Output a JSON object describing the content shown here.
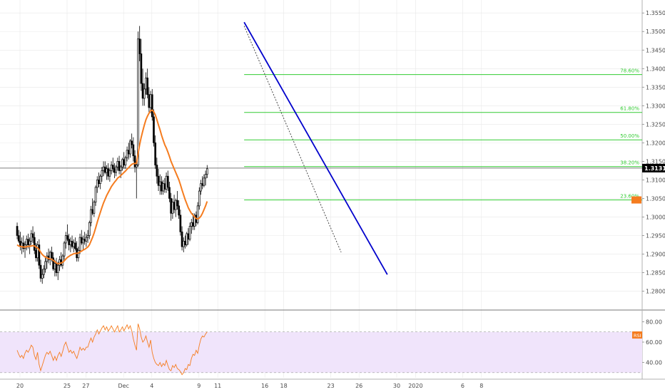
{
  "chart_data": {
    "type": "candlestick",
    "price_axis": {
      "ticks": [
        "1.35500",
        "1.35000",
        "1.34500",
        "1.34000",
        "1.33500",
        "1.33000",
        "1.32500",
        "1.32000",
        "1.31500",
        "1.31000",
        "1.30500",
        "1.30000",
        "1.29500",
        "1.29000",
        "1.28500",
        "1.28000"
      ],
      "ylim": [
        1.2755,
        1.3585
      ],
      "last_price": "1.31318",
      "last_price_color": "#000000"
    },
    "x_axis": {
      "labels": [
        {
          "label": "20",
          "day": 0
        },
        {
          "label": "25",
          "day": 5
        },
        {
          "label": "27",
          "day": 7
        },
        {
          "label": "Dec",
          "day": 11
        },
        {
          "label": "4",
          "day": 14
        },
        {
          "label": "9",
          "day": 19
        },
        {
          "label": "11",
          "day": 21
        },
        {
          "label": "16",
          "day": 26
        },
        {
          "label": "18",
          "day": 28
        },
        {
          "label": "23",
          "day": 33
        },
        {
          "label": "26",
          "day": 36
        },
        {
          "label": "30",
          "day": 40
        },
        {
          "label": "2020",
          "day": 42
        },
        {
          "label": "6",
          "day": 47
        },
        {
          "label": "8",
          "day": 49
        }
      ]
    },
    "colors": {
      "up": "#ffffff",
      "down": "#000000",
      "wick": "#000000",
      "ma": "#f57c1f",
      "trendline": "#0000cc",
      "fib": "#33cc33",
      "rsi_line": "#f57c1f",
      "rsi_band": "#f0e4fb",
      "grid": "#e8e8e8"
    },
    "candles_start_day": -0.3,
    "candle_step_days": 0.1667,
    "candles": [
      [
        1.2975,
        1.2985,
        1.294,
        1.295
      ],
      [
        1.295,
        1.2965,
        1.293,
        1.2935
      ],
      [
        1.2935,
        1.296,
        1.291,
        1.292
      ],
      [
        1.292,
        1.2945,
        1.29,
        1.293
      ],
      [
        1.293,
        1.295,
        1.2905,
        1.2915
      ],
      [
        1.2915,
        1.2935,
        1.289,
        1.2925
      ],
      [
        1.2925,
        1.295,
        1.291,
        1.294
      ],
      [
        1.294,
        1.2955,
        1.2915,
        1.2925
      ],
      [
        1.2925,
        1.2945,
        1.29,
        1.2935
      ],
      [
        1.2935,
        1.2965,
        1.2925,
        1.2955
      ],
      [
        1.2955,
        1.2975,
        1.293,
        1.2945
      ],
      [
        1.2945,
        1.296,
        1.29,
        1.291
      ],
      [
        1.291,
        1.293,
        1.288,
        1.289
      ],
      [
        1.289,
        1.2935,
        1.288,
        1.2925
      ],
      [
        1.2925,
        1.294,
        1.286,
        1.287
      ],
      [
        1.287,
        1.2885,
        1.2825,
        1.2835
      ],
      [
        1.2835,
        1.286,
        1.282,
        1.2845
      ],
      [
        1.2845,
        1.287,
        1.2835,
        1.286
      ],
      [
        1.286,
        1.289,
        1.285,
        1.288
      ],
      [
        1.288,
        1.2905,
        1.286,
        1.2895
      ],
      [
        1.2895,
        1.2915,
        1.2875,
        1.2885
      ],
      [
        1.2885,
        1.291,
        1.287,
        1.2905
      ],
      [
        1.2905,
        1.292,
        1.288,
        1.289
      ],
      [
        1.289,
        1.2905,
        1.2855,
        1.286
      ],
      [
        1.286,
        1.2885,
        1.284,
        1.2875
      ],
      [
        1.2875,
        1.289,
        1.284,
        1.285
      ],
      [
        1.285,
        1.288,
        1.283,
        1.287
      ],
      [
        1.287,
        1.2895,
        1.2855,
        1.2885
      ],
      [
        1.2885,
        1.2905,
        1.2865,
        1.287
      ],
      [
        1.287,
        1.29,
        1.286,
        1.2895
      ],
      [
        1.2895,
        1.2935,
        1.2885,
        1.293
      ],
      [
        1.293,
        1.296,
        1.2915,
        1.295
      ],
      [
        1.295,
        1.298,
        1.2935,
        1.294
      ],
      [
        1.294,
        1.2955,
        1.291,
        1.2925
      ],
      [
        1.2925,
        1.2945,
        1.2905,
        1.2935
      ],
      [
        1.2935,
        1.295,
        1.2915,
        1.292
      ],
      [
        1.292,
        1.294,
        1.2905,
        1.293
      ],
      [
        1.293,
        1.2945,
        1.291,
        1.2915
      ],
      [
        1.2915,
        1.2935,
        1.288,
        1.289
      ],
      [
        1.289,
        1.292,
        1.288,
        1.291
      ],
      [
        1.291,
        1.2955,
        1.29,
        1.2945
      ],
      [
        1.2945,
        1.2965,
        1.2925,
        1.293
      ],
      [
        1.293,
        1.295,
        1.291,
        1.294
      ],
      [
        1.294,
        1.296,
        1.2925,
        1.2935
      ],
      [
        1.2935,
        1.2955,
        1.292,
        1.2945
      ],
      [
        1.2945,
        1.2965,
        1.293,
        1.295
      ],
      [
        1.295,
        1.299,
        1.294,
        1.2985
      ],
      [
        1.2985,
        1.303,
        1.2975,
        1.302
      ],
      [
        1.302,
        1.305,
        1.3005,
        1.301
      ],
      [
        1.301,
        1.3045,
        1.3,
        1.304
      ],
      [
        1.304,
        1.3085,
        1.303,
        1.308
      ],
      [
        1.308,
        1.311,
        1.3065,
        1.31
      ],
      [
        1.31,
        1.312,
        1.308,
        1.309
      ],
      [
        1.309,
        1.3115,
        1.3075,
        1.311
      ],
      [
        1.311,
        1.3135,
        1.3095,
        1.3125
      ],
      [
        1.3125,
        1.315,
        1.311,
        1.3135
      ],
      [
        1.3135,
        1.315,
        1.3115,
        1.312
      ],
      [
        1.312,
        1.314,
        1.31,
        1.313
      ],
      [
        1.313,
        1.3145,
        1.31,
        1.311
      ],
      [
        1.311,
        1.313,
        1.3095,
        1.3125
      ],
      [
        1.3125,
        1.315,
        1.3115,
        1.314
      ],
      [
        1.314,
        1.316,
        1.312,
        1.313
      ],
      [
        1.313,
        1.3145,
        1.3105,
        1.312
      ],
      [
        1.312,
        1.314,
        1.311,
        1.3135
      ],
      [
        1.3135,
        1.316,
        1.3125,
        1.315
      ],
      [
        1.315,
        1.3165,
        1.3115,
        1.3125
      ],
      [
        1.3125,
        1.314,
        1.3105,
        1.3135
      ],
      [
        1.3135,
        1.316,
        1.3125,
        1.3155
      ],
      [
        1.3155,
        1.3175,
        1.313,
        1.314
      ],
      [
        1.314,
        1.3165,
        1.313,
        1.316
      ],
      [
        1.316,
        1.319,
        1.315,
        1.318
      ],
      [
        1.318,
        1.32,
        1.3155,
        1.317
      ],
      [
        1.317,
        1.321,
        1.316,
        1.3205
      ],
      [
        1.3205,
        1.3225,
        1.3185,
        1.3195
      ],
      [
        1.3195,
        1.3215,
        1.315,
        1.3165
      ],
      [
        1.3165,
        1.318,
        1.312,
        1.3135
      ],
      [
        1.3135,
        1.315,
        1.305,
        1.314
      ],
      [
        1.314,
        1.35,
        1.3135,
        1.348
      ],
      [
        1.348,
        1.3515,
        1.342,
        1.344
      ],
      [
        1.344,
        1.348,
        1.334,
        1.336
      ],
      [
        1.336,
        1.34,
        1.33,
        1.332
      ],
      [
        1.332,
        1.336,
        1.33,
        1.3345
      ],
      [
        1.3345,
        1.339,
        1.333,
        1.3375
      ],
      [
        1.3375,
        1.34,
        1.332,
        1.333
      ],
      [
        1.333,
        1.335,
        1.328,
        1.3295
      ],
      [
        1.3295,
        1.334,
        1.328,
        1.333
      ],
      [
        1.333,
        1.3345,
        1.326,
        1.327
      ],
      [
        1.327,
        1.329,
        1.319,
        1.32
      ],
      [
        1.32,
        1.322,
        1.313,
        1.314
      ],
      [
        1.314,
        1.316,
        1.309,
        1.311
      ],
      [
        1.311,
        1.313,
        1.307,
        1.3085
      ],
      [
        1.3085,
        1.3115,
        1.306,
        1.3095
      ],
      [
        1.3095,
        1.311,
        1.306,
        1.307
      ],
      [
        1.307,
        1.31,
        1.306,
        1.309
      ],
      [
        1.309,
        1.3105,
        1.3065,
        1.3075
      ],
      [
        1.3075,
        1.312,
        1.3065,
        1.311
      ],
      [
        1.311,
        1.3125,
        1.307,
        1.308
      ],
      [
        1.308,
        1.3095,
        1.304,
        1.305
      ],
      [
        1.305,
        1.3065,
        1.299,
        1.301
      ],
      [
        1.301,
        1.305,
        1.2995,
        1.304
      ],
      [
        1.304,
        1.306,
        1.301,
        1.302
      ],
      [
        1.302,
        1.305,
        1.3,
        1.3045
      ],
      [
        1.3045,
        1.307,
        1.302,
        1.303
      ],
      [
        1.303,
        1.3045,
        1.2995,
        1.3005
      ],
      [
        1.3005,
        1.302,
        1.295,
        1.296
      ],
      [
        1.296,
        1.2975,
        1.291,
        1.292
      ],
      [
        1.292,
        1.2945,
        1.2905,
        1.2935
      ],
      [
        1.2935,
        1.295,
        1.2915,
        1.2925
      ],
      [
        1.2925,
        1.296,
        1.292,
        1.2955
      ],
      [
        1.2955,
        1.297,
        1.2925,
        1.294
      ],
      [
        1.294,
        1.2985,
        1.2935,
        1.2975
      ],
      [
        1.2975,
        1.2995,
        1.2955,
        1.2985
      ],
      [
        1.2985,
        1.301,
        1.2965,
        1.2975
      ],
      [
        1.2975,
        1.301,
        1.2965,
        1.3005
      ],
      [
        1.3005,
        1.3015,
        1.2975,
        1.2985
      ],
      [
        1.2985,
        1.304,
        1.298,
        1.303
      ],
      [
        1.303,
        1.308,
        1.302,
        1.307
      ],
      [
        1.307,
        1.31,
        1.306,
        1.309
      ],
      [
        1.309,
        1.311,
        1.3075,
        1.3085
      ],
      [
        1.3085,
        1.3115,
        1.308,
        1.3105
      ],
      [
        1.3105,
        1.3125,
        1.3085,
        1.3115
      ],
      [
        1.3115,
        1.314,
        1.3105,
        1.313
      ]
    ],
    "ma_values": [
      1.2925,
      1.2922,
      1.2921,
      1.292,
      1.2919,
      1.2919,
      1.292,
      1.2921,
      1.2921,
      1.2922,
      1.2923,
      1.2922,
      1.2919,
      1.2917,
      1.2912,
      1.2905,
      1.2899,
      1.2895,
      1.2892,
      1.289,
      1.2888,
      1.2887,
      1.2886,
      1.2883,
      1.288,
      1.2876,
      1.2874,
      1.2875,
      1.2876,
      1.2878,
      1.2882,
      1.2887,
      1.2891,
      1.2894,
      1.2897,
      1.2899,
      1.2901,
      1.2902,
      1.2902,
      1.2903,
      1.2906,
      1.2908,
      1.2911,
      1.2913,
      1.2916,
      1.2919,
      1.2925,
      1.2935,
      1.2945,
      1.2957,
      1.2971,
      1.2986,
      1.3,
      1.3013,
      1.3026,
      1.3038,
      1.3048,
      1.3058,
      1.3066,
      1.3074,
      1.3082,
      1.3088,
      1.3094,
      1.3099,
      1.3105,
      1.3108,
      1.3112,
      1.3116,
      1.312,
      1.3124,
      1.3129,
      1.3133,
      1.3138,
      1.3142,
      1.3144,
      1.3144,
      1.3145,
      1.317,
      1.3195,
      1.3215,
      1.3232,
      1.3248,
      1.3262,
      1.3272,
      1.328,
      1.3287,
      1.3288,
      1.3284,
      1.3275,
      1.3262,
      1.3248,
      1.3235,
      1.322,
      1.3207,
      1.3195,
      1.3186,
      1.3175,
      1.3163,
      1.315,
      1.314,
      1.313,
      1.312,
      1.311,
      1.31,
      1.3087,
      1.3073,
      1.306,
      1.3047,
      1.3036,
      1.3025,
      1.3017,
      1.301,
      1.3005,
      1.3,
      1.2996,
      1.2995,
      1.2997,
      1.3002,
      1.301,
      1.302,
      1.303,
      1.3042
    ],
    "rsi": {
      "label": "RSI",
      "ticks": [
        "80.00",
        "60.00",
        "40.00"
      ],
      "ylim": [
        25,
        88
      ],
      "upper": 70,
      "lower": 30,
      "last_value": "RSI",
      "values": [
        52,
        48,
        45,
        47,
        44,
        49,
        52,
        50,
        53,
        57,
        55,
        47,
        43,
        50,
        38,
        32,
        37,
        42,
        47,
        50,
        48,
        51,
        47,
        42,
        46,
        42,
        47,
        50,
        46,
        51,
        57,
        60,
        55,
        50,
        52,
        49,
        51,
        47,
        44,
        49,
        55,
        52,
        54,
        52,
        55,
        55,
        60,
        64,
        60,
        65,
        68,
        72,
        68,
        71,
        74,
        76,
        72,
        75,
        71,
        73,
        76,
        73,
        70,
        73,
        76,
        70,
        72,
        75,
        71,
        74,
        77,
        73,
        76,
        71,
        63,
        57,
        52,
        78,
        73,
        65,
        60,
        62,
        66,
        60,
        55,
        62,
        50,
        44,
        40,
        38,
        37,
        40,
        36,
        39,
        37,
        42,
        37,
        33,
        32,
        37,
        35,
        38,
        34,
        33,
        31,
        28,
        30,
        34,
        33,
        38,
        37,
        44,
        48,
        47,
        52,
        49,
        57,
        63,
        66,
        65,
        68,
        70
      ]
    },
    "fib_levels": [
      {
        "label": "78.60%",
        "price": 1.3384
      },
      {
        "label": "61.80%",
        "price": 1.3282
      },
      {
        "label": "50.00%",
        "price": 1.3208
      },
      {
        "label": "38.20%",
        "price": 1.3136
      },
      {
        "label": "23.60%",
        "price": 1.3046
      }
    ],
    "trendline": {
      "from": [
        23.8,
        1.3525
      ],
      "to": [
        39.0,
        1.2845
      ]
    },
    "diagonal": {
      "from": [
        23.8,
        1.3515
      ],
      "to": [
        34.1,
        1.2905
      ]
    }
  }
}
